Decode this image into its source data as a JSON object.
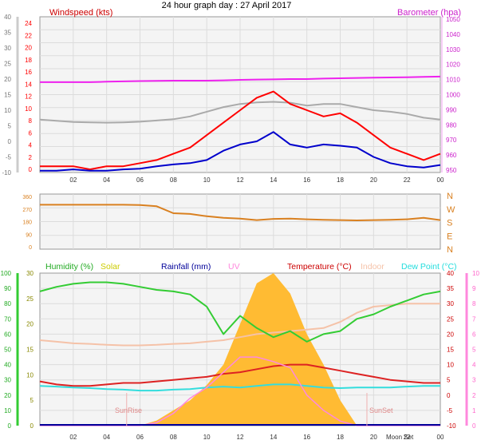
{
  "title": "24 hour graph day : 27 April 2017",
  "colors": {
    "wind": "#ff0000",
    "wind_avg": "#0000cc",
    "barometer": "#ee22ee",
    "temperature_left_axis": "#aaaaaa",
    "wind_dir": "#d98020",
    "humidity": "#33cc33",
    "solar": "#ffbb33",
    "rainfall": "#000099",
    "uv": "#ff88dd",
    "temperature": "#dd2222",
    "indoor": "#f5c2a8",
    "dew_point": "#33dddd",
    "plot_bg": "#f4f4f4"
  },
  "chart_data": [
    {
      "type": "line",
      "name": "wind-barometer",
      "x_ticks": [
        "02",
        "04",
        "06",
        "08",
        "10",
        "12",
        "14",
        "16",
        "18",
        "20",
        "22",
        "00"
      ],
      "left_outer_ticks": [
        "40",
        "35",
        "30",
        "25",
        "20",
        "15",
        "10",
        "5",
        "0",
        "-5",
        "-10"
      ],
      "left_inner_ticks": [
        "24",
        "22",
        "20",
        "18",
        "16",
        "14",
        "12",
        "10",
        "8",
        "6",
        "4",
        "2",
        "0"
      ],
      "right_ticks": [
        "1050",
        "1040",
        "1030",
        "1020",
        "1010",
        "1000",
        "990",
        "980",
        "970",
        "960",
        "950"
      ],
      "legend": [
        {
          "label": "Windspeed (kts)",
          "color": "#cc0000"
        },
        {
          "label": "Barometer (hpa)",
          "color": "#cc22cc"
        }
      ],
      "ylim_wind": [
        0,
        25
      ],
      "ylim_baro": [
        950,
        1050
      ],
      "ylim_temp": [
        -10,
        40
      ],
      "x_hours": [
        0,
        1,
        2,
        3,
        4,
        5,
        6,
        7,
        8,
        9,
        10,
        11,
        12,
        13,
        14,
        15,
        16,
        17,
        18,
        19,
        20,
        21,
        22,
        23,
        24
      ],
      "series": [
        {
          "name": "Barometer (hpa)",
          "values": [
            1008,
            1008,
            1008,
            1008,
            1008.3,
            1008.5,
            1008.7,
            1008.8,
            1009,
            1009,
            1009,
            1009.2,
            1009.5,
            1009.7,
            1009.8,
            1010,
            1010,
            1010.3,
            1010.5,
            1010.7,
            1010.9,
            1011,
            1011.2,
            1011.4,
            1011.6
          ]
        },
        {
          "values": [
            7,
            6.6,
            6.2,
            6.1,
            6,
            6.1,
            6.3,
            6.7,
            7.1,
            8,
            9.5,
            11,
            12,
            12.5,
            12.7,
            12.4,
            11.5,
            12,
            12,
            11,
            10,
            9.5,
            8.8,
            7.6,
            7
          ]
        },
        {
          "name": "Windspeed (kts)",
          "values": [
            1,
            1,
            1,
            0.5,
            1,
            1,
            1.5,
            2,
            3,
            4,
            6,
            8,
            10,
            12,
            13,
            11,
            10,
            9,
            9.5,
            8,
            6,
            4,
            3,
            2,
            3
          ]
        },
        {
          "values": [
            0.3,
            0.3,
            0.5,
            0.3,
            0.3,
            0.5,
            0.6,
            1,
            1.3,
            1.5,
            2,
            3.5,
            4.5,
            5,
            6.5,
            4.5,
            4,
            4.5,
            4.3,
            4,
            2.5,
            1.5,
            1,
            0.8,
            1.2
          ]
        }
      ]
    },
    {
      "type": "line",
      "name": "wind-direction",
      "x_hours": [
        0,
        1,
        2,
        3,
        4,
        5,
        6,
        7,
        8,
        9,
        10,
        11,
        12,
        13,
        14,
        15,
        16,
        17,
        18,
        19,
        20,
        21,
        22,
        23,
        24
      ],
      "left_ticks": [
        "360",
        "270",
        "180",
        "90",
        "0"
      ],
      "right_labels": [
        "N",
        "W",
        "S",
        "E",
        "N"
      ],
      "ylim": [
        0,
        360
      ],
      "series": [
        {
          "values": [
            290,
            290,
            290,
            290,
            290,
            290,
            288,
            280,
            235,
            230,
            215,
            205,
            200,
            190,
            198,
            200,
            195,
            192,
            190,
            188,
            190,
            192,
            195,
            205,
            190
          ]
        }
      ]
    },
    {
      "type": "area",
      "name": "humidity-solar-temp",
      "x_ticks": [
        "02",
        "04",
        "06",
        "08",
        "10",
        "12",
        "14",
        "16",
        "18",
        "20",
        "22",
        "00"
      ],
      "legend": [
        {
          "label": "Humidity (%)",
          "color": "#22aa22"
        },
        {
          "label": "Solar",
          "color": "#cccc00"
        },
        {
          "label": "Rainfall (mm)",
          "color": "#000099"
        },
        {
          "label": "UV",
          "color": "#ff88dd"
        },
        {
          "label": "Temperature (°C)",
          "color": "#cc0000"
        },
        {
          "label": "Indoor",
          "color": "#f5c2a8"
        },
        {
          "label": "Dew Point (°C)",
          "color": "#22dddd"
        }
      ],
      "left_outer_ticks": [
        "100",
        "90",
        "80",
        "70",
        "60",
        "50",
        "40",
        "30",
        "20",
        "10",
        "0"
      ],
      "left_inner_ticks": [
        "30",
        "25",
        "20",
        "15",
        "10",
        "5",
        "0"
      ],
      "right_inner_ticks": [
        "40",
        "35",
        "30",
        "25",
        "20",
        "15",
        "10",
        "5",
        "0",
        "-5",
        "-10"
      ],
      "right_outer_ticks": [
        "10",
        "9",
        "8",
        "7",
        "6",
        "5",
        "4",
        "3",
        "2",
        "1",
        "0"
      ],
      "annotations": [
        "SunRise",
        "SunSet",
        "Moon Set"
      ],
      "ylim_humidity": [
        0,
        100
      ],
      "ylim_temp": [
        -10,
        40
      ],
      "x_hours": [
        0,
        1,
        2,
        3,
        4,
        5,
        6,
        7,
        8,
        9,
        10,
        11,
        12,
        13,
        14,
        15,
        16,
        17,
        18,
        19,
        20,
        21,
        22,
        23,
        24
      ],
      "series": [
        {
          "name": "Humidity (%)",
          "values": [
            88,
            91,
            93,
            94,
            94,
            93,
            91,
            89,
            88,
            86,
            78,
            60,
            72,
            64,
            58,
            62,
            55,
            60,
            62,
            70,
            73,
            78,
            82,
            86,
            88
          ]
        },
        {
          "name": "Solar",
          "values": [
            0,
            0,
            0,
            0,
            0,
            0,
            0,
            1,
            3,
            5,
            8,
            12,
            20,
            28,
            30,
            26,
            18,
            12,
            5,
            0,
            0,
            0,
            0,
            0,
            0
          ]
        },
        {
          "name": "Temperature (°C)",
          "values": [
            4.5,
            3.5,
            3,
            3,
            3.5,
            4,
            4,
            4.5,
            5,
            5.5,
            6,
            7,
            7.5,
            8.5,
            9.5,
            10,
            10,
            9,
            8,
            7,
            6,
            5,
            4.5,
            4,
            4
          ]
        },
        {
          "name": "Indoor",
          "values": [
            18,
            17.5,
            17,
            16.8,
            16.5,
            16.3,
            16.3,
            16.5,
            16.8,
            17,
            17.5,
            18,
            19,
            20,
            20.5,
            21,
            21.5,
            22,
            24,
            27,
            29,
            29.5,
            30,
            30,
            30
          ]
        },
        {
          "name": "Dew Point (°C)",
          "values": [
            3,
            2.8,
            2.5,
            2.3,
            2,
            1.8,
            1.5,
            1.5,
            1.8,
            2,
            2.5,
            2.8,
            2.5,
            3,
            3.5,
            3.5,
            3,
            2.5,
            2.3,
            2.5,
            2.5,
            2.5,
            2.8,
            3,
            3
          ]
        },
        {
          "name": "UV",
          "values": [
            0,
            0,
            0,
            0,
            0,
            0,
            0,
            0.2,
            0.8,
            1.8,
            2.5,
            3.5,
            4.5,
            4.5,
            4.2,
            3.8,
            2,
            1,
            0.3,
            0,
            0,
            0,
            0,
            0,
            0
          ]
        }
      ]
    }
  ]
}
